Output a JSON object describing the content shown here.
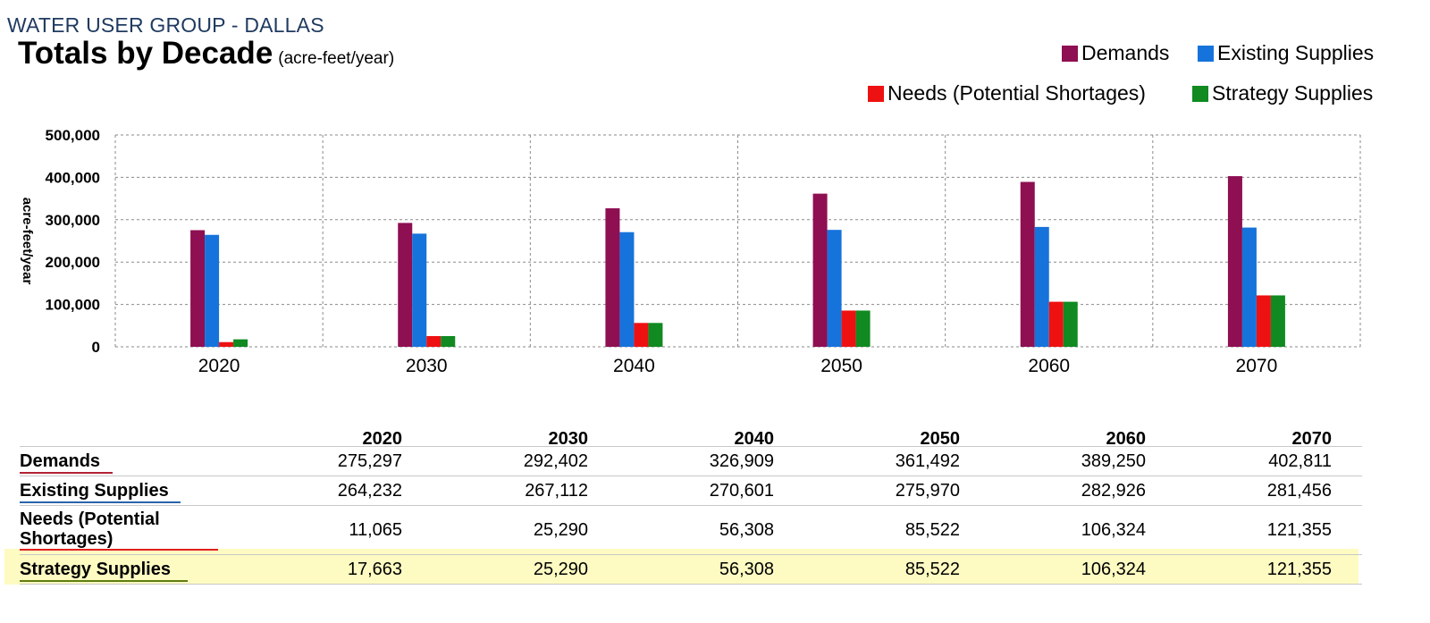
{
  "header": {
    "group": "WATER USER GROUP - DALLAS",
    "title": "Totals by Decade",
    "units": "(acre-feet/year)"
  },
  "legend": [
    {
      "label": "Demands",
      "color": "#8e0f52"
    },
    {
      "label": "Existing Supplies",
      "color": "#1673db"
    },
    {
      "label": "Needs (Potential Shortages)",
      "color": "#ee1111"
    },
    {
      "label": "Strategy Supplies",
      "color": "#108a21"
    }
  ],
  "chart_data": {
    "type": "bar",
    "categories": [
      "2020",
      "2030",
      "2040",
      "2050",
      "2060",
      "2070"
    ],
    "ylabel": "acre-feet/year",
    "ylim": [
      0,
      500000
    ],
    "yticks": [
      "0",
      "100,000",
      "200,000",
      "300,000",
      "400,000",
      "500,000"
    ],
    "grid": true,
    "legend_position": "top-right",
    "series": [
      {
        "name": "Demands",
        "color": "#8e0f52",
        "values": [
          275297,
          292402,
          326909,
          361492,
          389250,
          402811
        ]
      },
      {
        "name": "Existing Supplies",
        "color": "#1673db",
        "values": [
          264232,
          267112,
          270601,
          275970,
          282926,
          281456
        ]
      },
      {
        "name": "Needs (Potential Shortages)",
        "color": "#ee1111",
        "values": [
          11065,
          25290,
          56308,
          85522,
          106324,
          121355
        ]
      },
      {
        "name": "Strategy Supplies",
        "color": "#108a21",
        "values": [
          17663,
          25290,
          56308,
          85522,
          106324,
          121355
        ]
      }
    ]
  },
  "table": {
    "columns": [
      "2020",
      "2030",
      "2040",
      "2050",
      "2060",
      "2070"
    ],
    "rows": [
      {
        "label": "Demands",
        "underline": "#b22234",
        "values": [
          "275,297",
          "292,402",
          "326,909",
          "361,492",
          "389,250",
          "402,811"
        ]
      },
      {
        "label": "Existing Supplies",
        "underline": "#2a64a8",
        "values": [
          "264,232",
          "267,112",
          "270,601",
          "275,970",
          "282,926",
          "281,456"
        ]
      },
      {
        "label": "Needs (Potential Shortages)",
        "label_line1": "Needs (Potential",
        "label_line2": "Shortages)",
        "underline": "#e02020",
        "values": [
          "11,065",
          "25,290",
          "56,308",
          "85,522",
          "106,324",
          "121,355"
        ]
      },
      {
        "label": "Strategy Supplies",
        "underline": "#5f7d10",
        "highlight": "#fdfbc2",
        "values": [
          "17,663",
          "25,290",
          "56,308",
          "85,522",
          "106,324",
          "121,355"
        ]
      }
    ]
  }
}
